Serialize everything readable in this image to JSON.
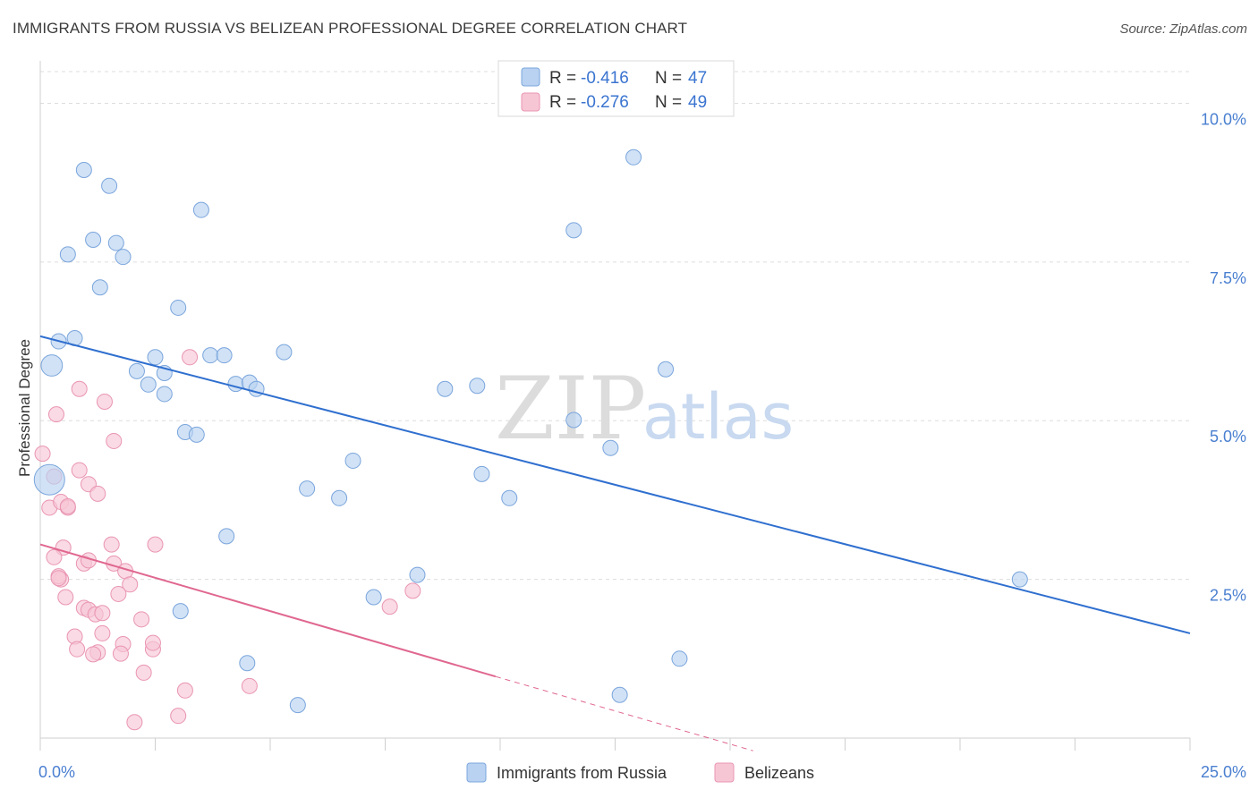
{
  "header": {
    "title": "IMMIGRANTS FROM RUSSIA VS BELIZEAN PROFESSIONAL DEGREE CORRELATION CHART",
    "source": "Source: ZipAtlas.com"
  },
  "watermark": {
    "zip": "ZIP",
    "atlas": "atlas"
  },
  "legend_top": [
    {
      "r_label": "R = ",
      "r_value": "-0.416",
      "n_label": "N = ",
      "n_value": "47"
    },
    {
      "r_label": "R = ",
      "r_value": "-0.276",
      "n_label": "N = ",
      "n_value": "49"
    }
  ],
  "legend_bottom": [
    "Immigrants from Russia",
    "Belizeans"
  ],
  "colors": {
    "blue_fill": "#b9d2f1",
    "blue_stroke": "#7aa5dc",
    "blue_line": "#2f6fcf",
    "pink_fill": "#f7c6d5",
    "pink_stroke": "#e995b2",
    "pink_line": "#e0678f",
    "grid": "#dddddd",
    "tick": "#4a7fd0"
  },
  "chart_data": {
    "type": "scatter",
    "title": "IMMIGRANTS FROM RUSSIA VS BELIZEAN PROFESSIONAL DEGREE CORRELATION CHART",
    "xlabel": "",
    "ylabel": "Professional Degree",
    "xlim": [
      0,
      25
    ],
    "ylim": [
      0,
      10.5
    ],
    "x_tick_labels": [
      "0.0%",
      "25.0%"
    ],
    "y_ticks": [
      2.5,
      5.0,
      7.5,
      10.0
    ],
    "y_tick_labels": [
      "2.5%",
      "5.0%",
      "7.5%",
      "10.0%"
    ],
    "grid": true,
    "legend_placement": "top-center",
    "series": [
      {
        "name": "Immigrants from Russia",
        "r": -0.416,
        "n": 47,
        "trend": {
          "x": [
            0,
            25
          ],
          "y": [
            6.33,
            1.65
          ]
        },
        "points": [
          [
            0.95,
            8.95
          ],
          [
            1.5,
            8.7
          ],
          [
            1.15,
            7.85
          ],
          [
            1.65,
            7.8
          ],
          [
            0.6,
            7.62
          ],
          [
            1.8,
            7.58
          ],
          [
            3.5,
            8.32
          ],
          [
            1.3,
            7.1
          ],
          [
            3.0,
            6.78
          ],
          [
            0.4,
            6.25
          ],
          [
            0.75,
            6.3
          ],
          [
            2.5,
            6.0
          ],
          [
            2.1,
            5.78
          ],
          [
            2.7,
            5.75
          ],
          [
            2.35,
            5.57
          ],
          [
            2.7,
            5.42
          ],
          [
            3.7,
            6.03
          ],
          [
            4.0,
            6.03
          ],
          [
            5.3,
            6.08
          ],
          [
            4.25,
            5.58
          ],
          [
            4.55,
            5.6
          ],
          [
            4.7,
            5.5
          ],
          [
            0.25,
            5.87
          ],
          [
            3.15,
            4.82
          ],
          [
            3.4,
            4.78
          ],
          [
            0.2,
            4.07
          ],
          [
            6.8,
            4.37
          ],
          [
            5.8,
            3.93
          ],
          [
            6.5,
            3.78
          ],
          [
            4.05,
            3.18
          ],
          [
            8.8,
            5.5
          ],
          [
            9.5,
            5.55
          ],
          [
            9.6,
            4.16
          ],
          [
            11.6,
            5.01
          ],
          [
            10.2,
            3.78
          ],
          [
            12.4,
            4.57
          ],
          [
            8.2,
            2.57
          ],
          [
            7.25,
            2.22
          ],
          [
            11.6,
            8.0
          ],
          [
            12.9,
            9.15
          ],
          [
            13.6,
            5.81
          ],
          [
            5.6,
            0.52
          ],
          [
            4.5,
            1.18
          ],
          [
            13.9,
            1.25
          ],
          [
            12.6,
            0.68
          ],
          [
            21.3,
            2.5
          ],
          [
            3.05,
            2.0
          ]
        ],
        "sizes": [
          1,
          1,
          1,
          1,
          1,
          1,
          1,
          1,
          1,
          1,
          1,
          1,
          1,
          1,
          1,
          1,
          1,
          1,
          1,
          1,
          1,
          1,
          1.4,
          1,
          1,
          2.0,
          1,
          1,
          1,
          1,
          1,
          1,
          1,
          1,
          1,
          1,
          1,
          1,
          1,
          1,
          1,
          1,
          1,
          1,
          1,
          1,
          1
        ]
      },
      {
        "name": "Belizeans",
        "r": -0.276,
        "n": 49,
        "trend": {
          "x": [
            0,
            9.9
          ],
          "y": [
            3.05,
            0.97
          ]
        },
        "trend_dashed": {
          "x": [
            9.9,
            15.5
          ],
          "y": [
            0.97,
            -0.2
          ]
        },
        "points": [
          [
            0.05,
            4.48
          ],
          [
            0.3,
            4.12
          ],
          [
            0.35,
            5.1
          ],
          [
            0.85,
            4.22
          ],
          [
            1.05,
            4.0
          ],
          [
            1.25,
            3.85
          ],
          [
            1.6,
            4.68
          ],
          [
            0.2,
            3.63
          ],
          [
            0.45,
            3.72
          ],
          [
            0.6,
            3.63
          ],
          [
            1.4,
            5.3
          ],
          [
            0.85,
            5.5
          ],
          [
            0.5,
            3.0
          ],
          [
            0.3,
            2.85
          ],
          [
            0.95,
            2.75
          ],
          [
            1.05,
            2.8
          ],
          [
            1.55,
            3.05
          ],
          [
            2.5,
            3.05
          ],
          [
            1.6,
            2.75
          ],
          [
            1.85,
            2.63
          ],
          [
            0.45,
            2.5
          ],
          [
            0.4,
            2.55
          ],
          [
            1.95,
            2.42
          ],
          [
            1.7,
            2.27
          ],
          [
            0.55,
            2.22
          ],
          [
            0.95,
            2.05
          ],
          [
            1.05,
            2.02
          ],
          [
            1.2,
            1.95
          ],
          [
            1.35,
            1.97
          ],
          [
            2.2,
            1.87
          ],
          [
            0.75,
            1.6
          ],
          [
            0.8,
            1.4
          ],
          [
            1.35,
            1.65
          ],
          [
            1.8,
            1.48
          ],
          [
            1.25,
            1.35
          ],
          [
            1.75,
            1.33
          ],
          [
            2.45,
            1.4
          ],
          [
            1.15,
            1.32
          ],
          [
            2.25,
            1.03
          ],
          [
            3.15,
            0.75
          ],
          [
            4.55,
            0.82
          ],
          [
            2.05,
            0.25
          ],
          [
            3.0,
            0.35
          ],
          [
            3.25,
            6.0
          ],
          [
            8.1,
            2.32
          ],
          [
            7.6,
            2.07
          ],
          [
            0.4,
            2.52
          ],
          [
            0.6,
            3.65
          ],
          [
            2.45,
            1.5
          ]
        ]
      }
    ]
  }
}
